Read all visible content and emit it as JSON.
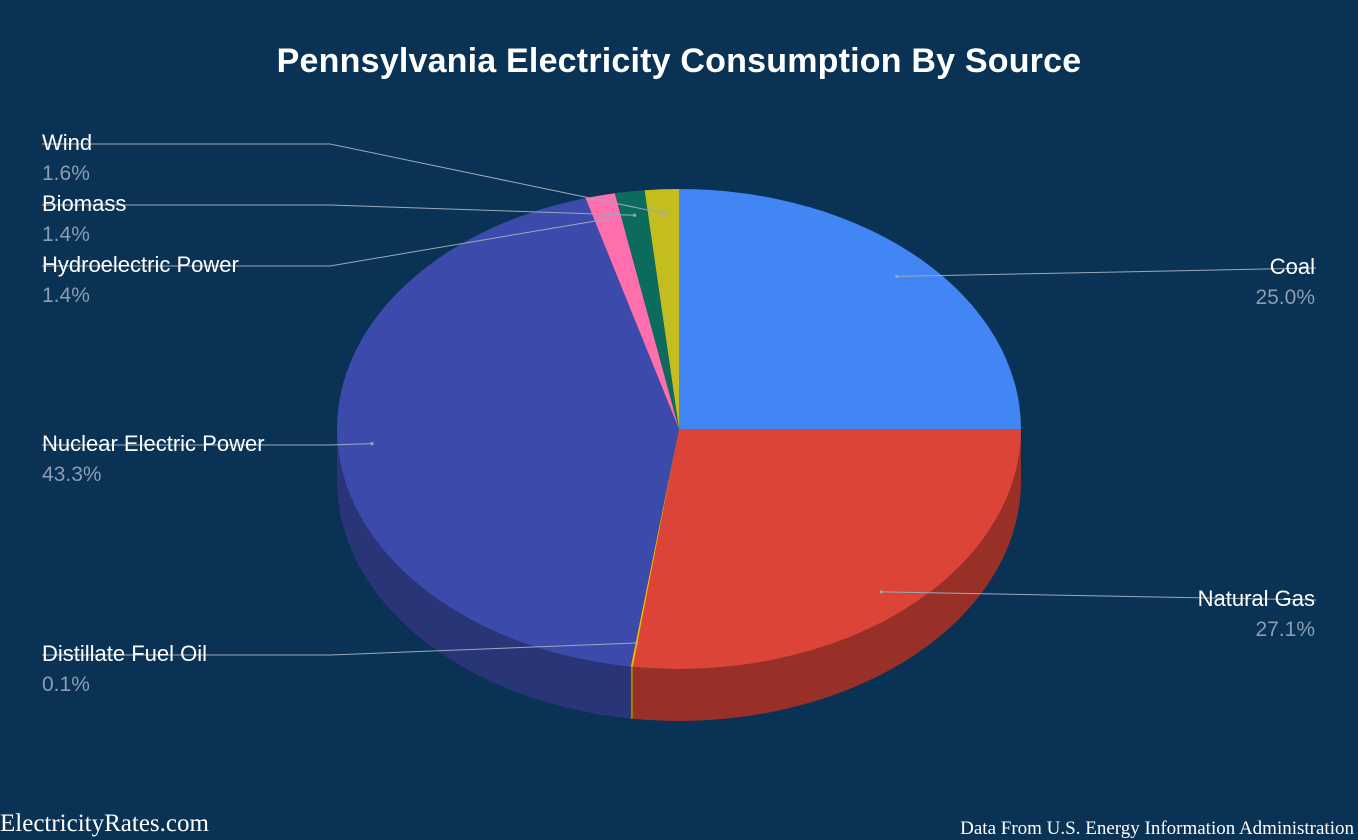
{
  "chart_data": {
    "type": "pie",
    "title": "Pennsylvania Electricity Consumption By Source",
    "slices": [
      {
        "label": "Coal",
        "value": 25.0,
        "pct_text": "25.0%",
        "color": "#4285f4"
      },
      {
        "label": "Natural Gas",
        "value": 27.1,
        "pct_text": "27.1%",
        "color": "#db4437"
      },
      {
        "label": "Distillate Fuel Oil",
        "value": 0.1,
        "pct_text": "0.1%",
        "color": "#f4b400"
      },
      {
        "label": "Nuclear Electric Power",
        "value": 43.3,
        "pct_text": "43.3%",
        "color": "#3c4bab"
      },
      {
        "label": "Hydroelectric Power",
        "value": 1.4,
        "pct_text": "1.4%",
        "color": "#ff6fae"
      },
      {
        "label": "Biomass",
        "value": 1.4,
        "pct_text": "1.4%",
        "color": "#0b6b5c"
      },
      {
        "label": "Wind",
        "value": 1.6,
        "pct_text": "1.6%",
        "color": "#c4bd20"
      }
    ],
    "style": "3d-pie",
    "legend": "none"
  },
  "footer": {
    "brand": "ElectricityRates.com",
    "source": "Data From U.S. Energy Information Administration"
  }
}
